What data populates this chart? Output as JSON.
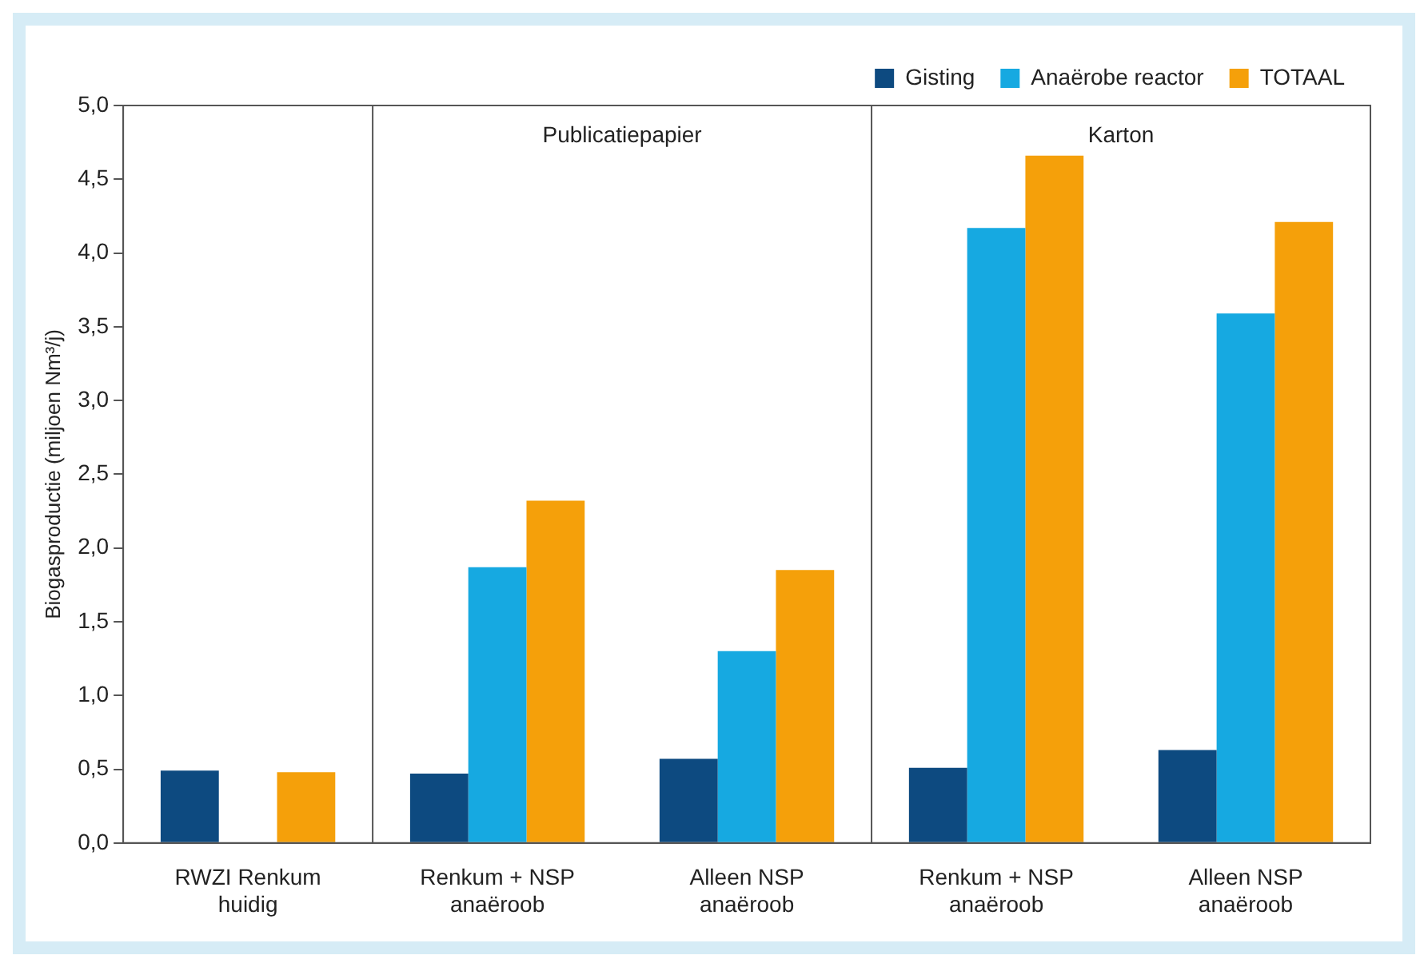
{
  "chart_data": {
    "type": "bar",
    "ylabel": "Biogasproductie (miljoen Nm³/j)",
    "categories": [
      "RWZI Renkum\nhuidig",
      "Renkum + NSP\nanaëroob",
      "Alleen NSP\nanaëroob",
      "Renkum + NSP\nanaëroob",
      "Alleen NSP\nanaëroob"
    ],
    "series": [
      {
        "name": "Gisting",
        "color": "#0d4a80",
        "values": [
          0.49,
          0.47,
          0.57,
          0.51,
          0.63
        ]
      },
      {
        "name": "Anaërobe reactor",
        "color": "#16a9e1",
        "values": [
          null,
          1.87,
          1.3,
          4.17,
          3.59
        ]
      },
      {
        "name": "TOTAAL",
        "color": "#f5a00a",
        "values": [
          0.48,
          2.32,
          1.85,
          4.66,
          4.21
        ]
      }
    ],
    "ylim": [
      0,
      5
    ],
    "yticks": [
      {
        "value": 0,
        "label": "0,0"
      },
      {
        "value": 0.5,
        "label": "0,5"
      },
      {
        "value": 1,
        "label": "1,0"
      },
      {
        "value": 1.5,
        "label": "1,5"
      },
      {
        "value": 2,
        "label": "2,0"
      },
      {
        "value": 2.5,
        "label": "2,5"
      },
      {
        "value": 3,
        "label": "3,0"
      },
      {
        "value": 3.5,
        "label": "3,5"
      },
      {
        "value": 4,
        "label": "4,0"
      },
      {
        "value": 4.5,
        "label": "4,5"
      },
      {
        "value": 5,
        "label": "5,0"
      }
    ],
    "annotations": [
      "Publicatiepapier",
      "Karton"
    ],
    "grid": false,
    "legend": "top right"
  }
}
